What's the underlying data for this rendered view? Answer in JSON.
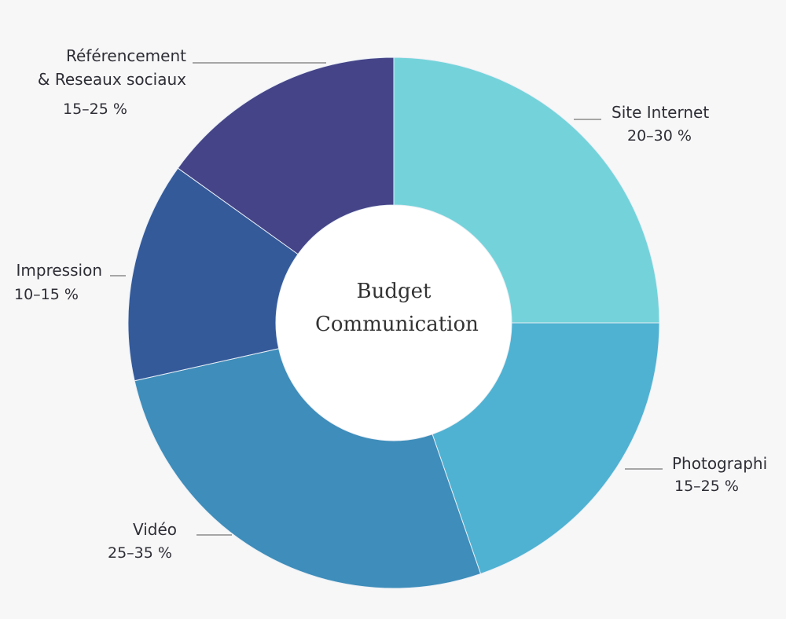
{
  "chart_data": {
    "type": "donut",
    "title": "Budget Communication",
    "categories": [
      "Site Internet",
      "Photographi",
      "Vidéo",
      "Impression",
      "Référencement\n& Reseaux sociaux"
    ],
    "ranges": [
      "20–30 %",
      "15–25 %",
      "25–35 %",
      "10–15 %",
      "15–25 %"
    ],
    "values": [
      25,
      19.7,
      26.8,
      13.4,
      15.1
    ],
    "colors": [
      "#74d3da",
      "#4fb2d2",
      "#3e8dba",
      "#345a9a",
      "#454488"
    ]
  }
}
